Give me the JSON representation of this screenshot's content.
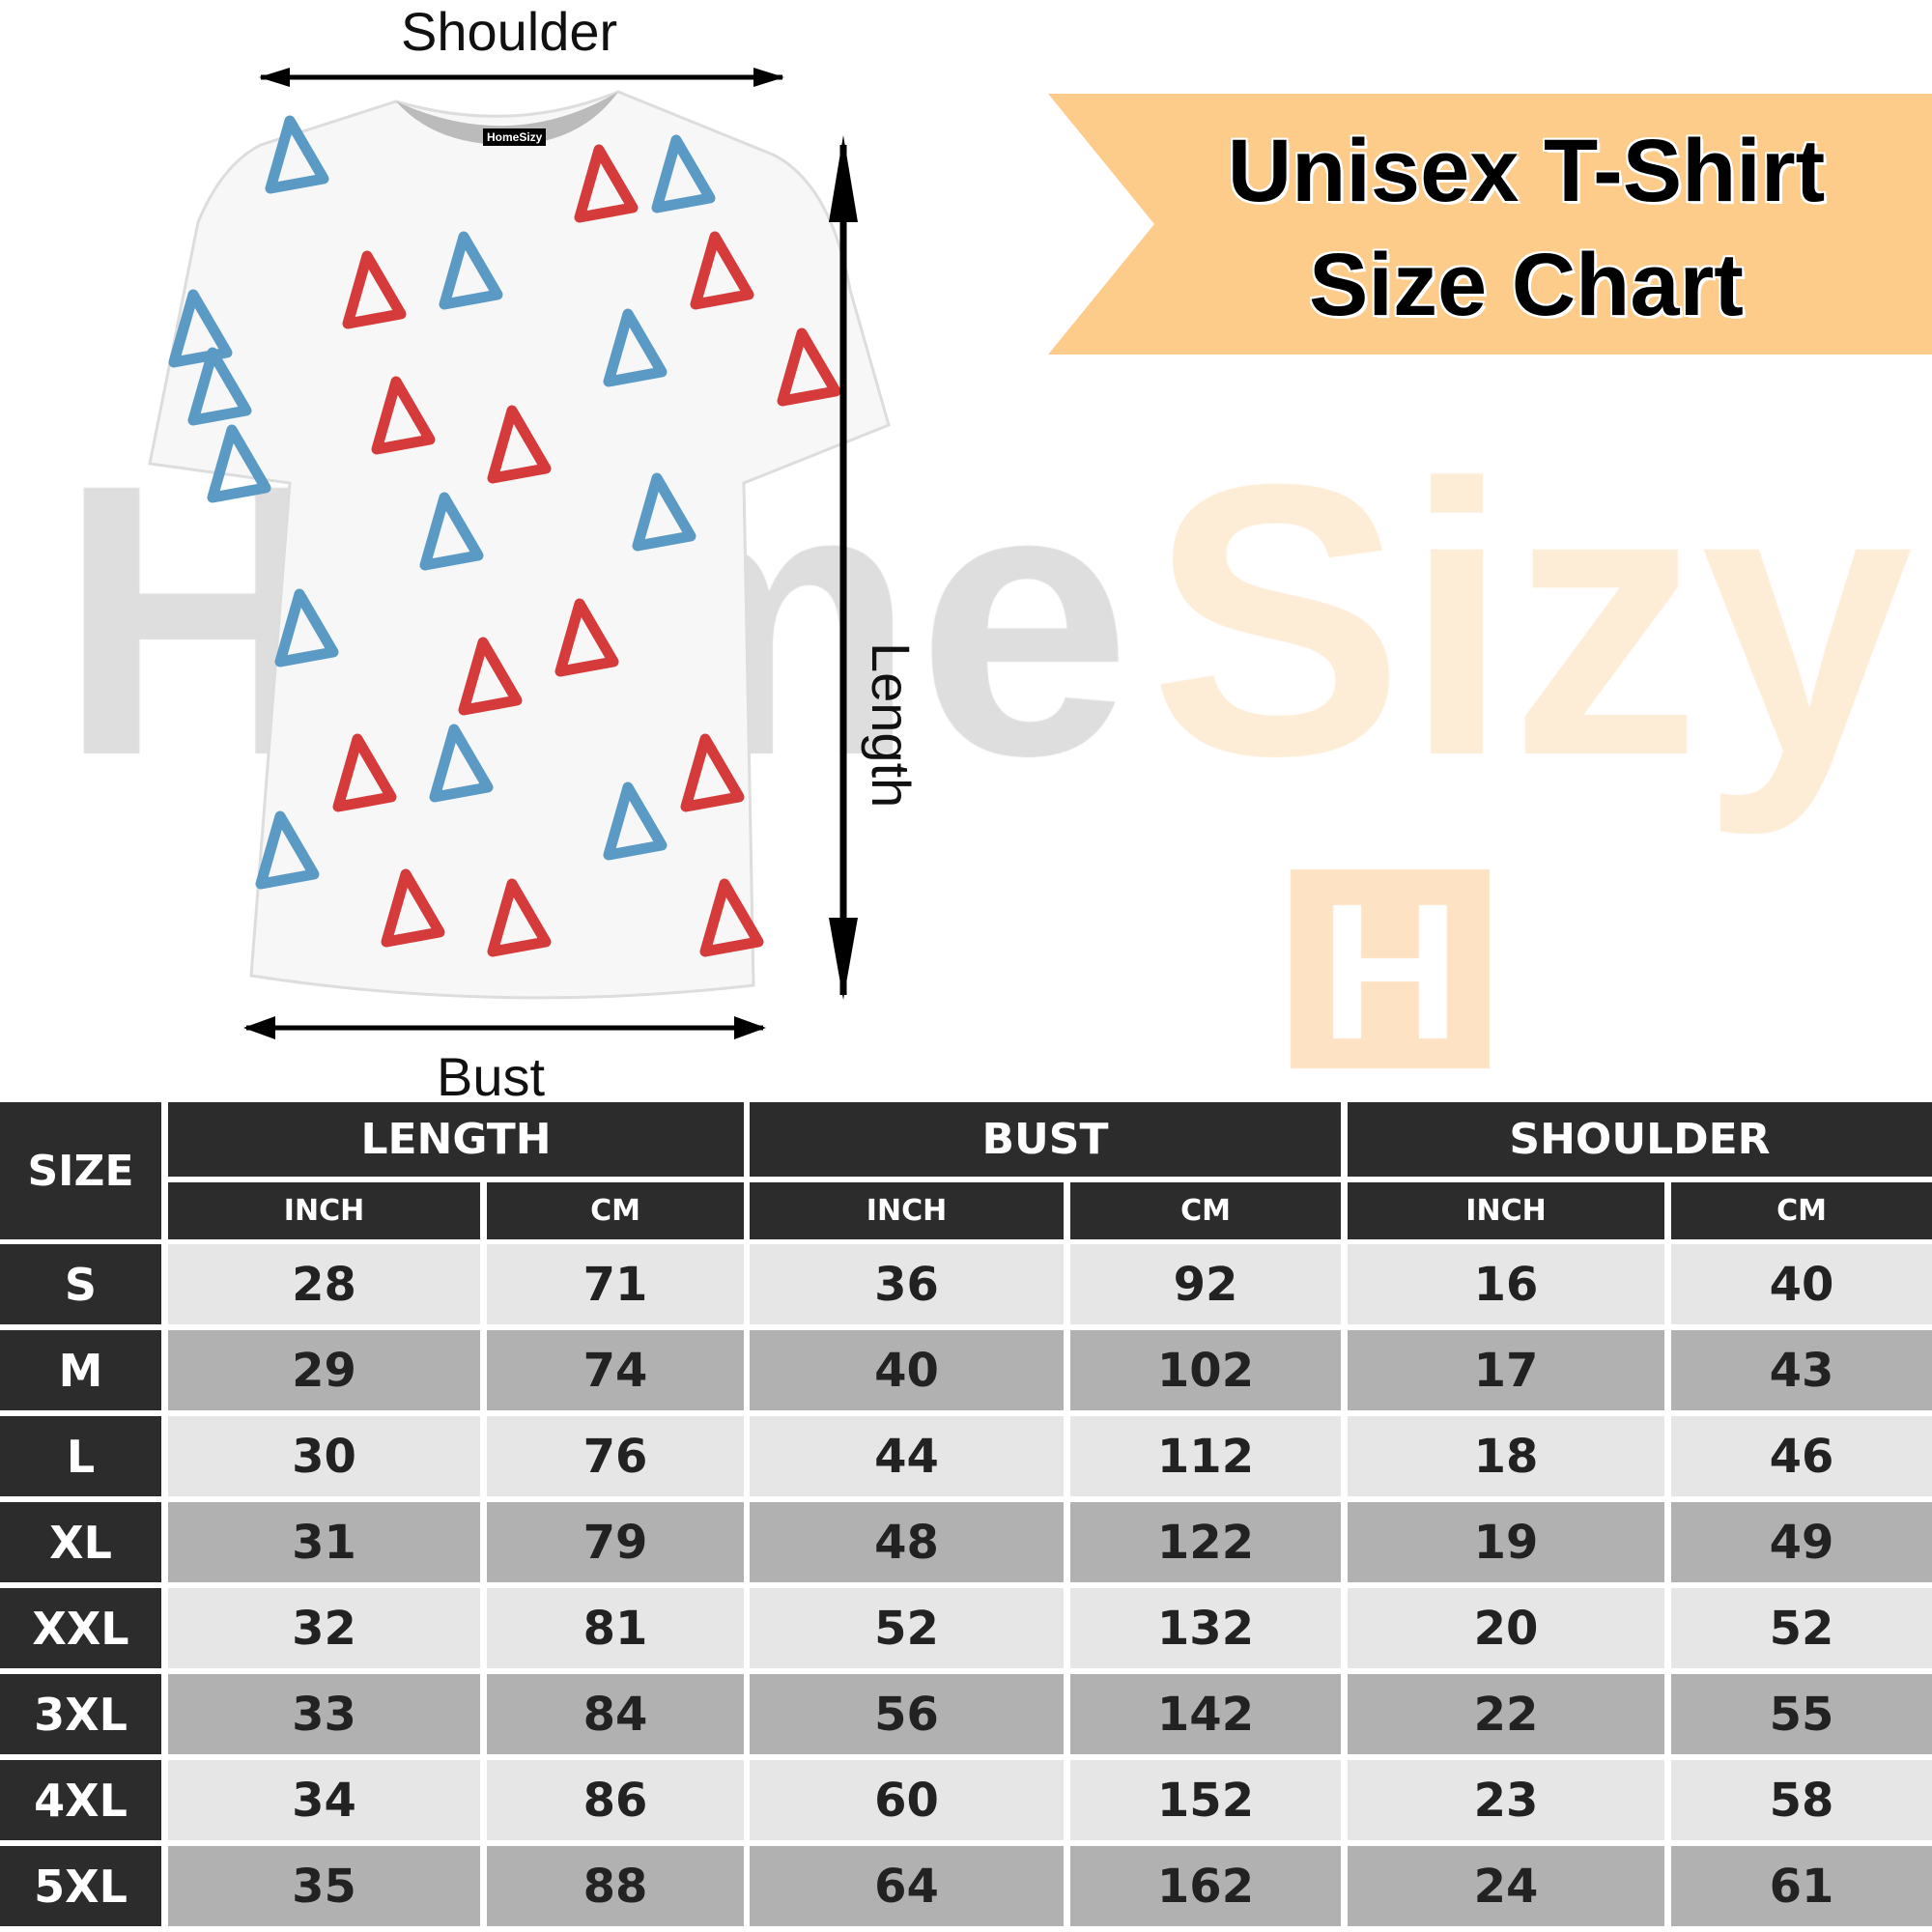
{
  "watermark": {
    "part1": "Home",
    "part2": "Sizy",
    "logo_letter": "H"
  },
  "shirt": {
    "tag": "HomeSizy"
  },
  "measure_labels": {
    "shoulder": "Shoulder",
    "length": "Length",
    "bust": "Bust"
  },
  "banner": {
    "line1": "Unisex T-Shirt",
    "line2": "Size Chart",
    "color": "#fdcb8a"
  },
  "table": {
    "size_header": "SIZE",
    "groups": [
      "LENGTH",
      "BUST",
      "SHOULDER"
    ],
    "units": [
      "INCH",
      "CM",
      "INCH",
      "CM",
      "INCH",
      "CM"
    ],
    "rows": [
      {
        "size": "S",
        "values": [
          "28",
          "71",
          "36",
          "92",
          "16",
          "40"
        ]
      },
      {
        "size": "M",
        "values": [
          "29",
          "74",
          "40",
          "102",
          "17",
          "43"
        ]
      },
      {
        "size": "L",
        "values": [
          "30",
          "76",
          "44",
          "112",
          "18",
          "46"
        ]
      },
      {
        "size": "XL",
        "values": [
          "31",
          "79",
          "48",
          "122",
          "19",
          "49"
        ]
      },
      {
        "size": "XXL",
        "values": [
          "32",
          "81",
          "52",
          "132",
          "20",
          "52"
        ]
      },
      {
        "size": "3XL",
        "values": [
          "33",
          "84",
          "56",
          "142",
          "22",
          "55"
        ]
      },
      {
        "size": "4XL",
        "values": [
          "34",
          "86",
          "60",
          "152",
          "23",
          "58"
        ]
      },
      {
        "size": "5XL",
        "values": [
          "35",
          "88",
          "64",
          "162",
          "24",
          "61"
        ]
      }
    ]
  }
}
